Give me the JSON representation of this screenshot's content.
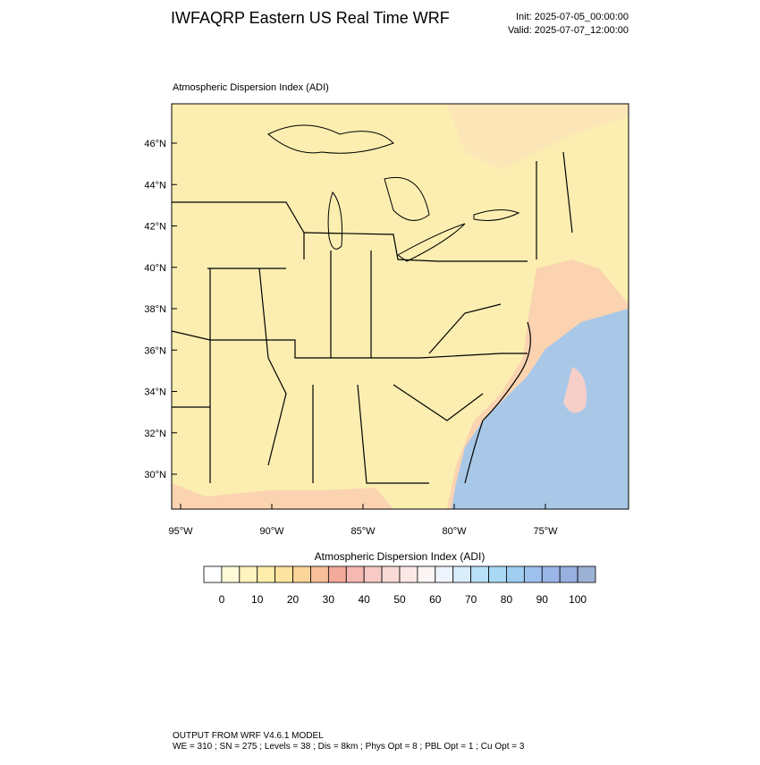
{
  "header": {
    "title": "IWFAQRP Eastern US Real Time WRF",
    "init": "Init: 2025-07-05_00:00:00",
    "valid": "Valid: 2025-07-07_12:00:00"
  },
  "map": {
    "label": "Atmospheric Dispersion Index   (ADI)",
    "lat_labels": [
      "46°N",
      "44°N",
      "42°N",
      "40°N",
      "38°N",
      "36°N",
      "34°N",
      "32°N",
      "30°N"
    ],
    "lon_labels": [
      "95°W",
      "90°W",
      "85°W",
      "80°W",
      "75°W"
    ]
  },
  "colorbar": {
    "title": "Atmospheric Dispersion Index  (ADI)",
    "ticks": [
      0,
      10,
      20,
      30,
      40,
      50,
      60,
      70,
      80,
      90,
      100
    ],
    "colors": [
      "#ffffff",
      "#fffbd8",
      "#fff4c0",
      "#fdedaa",
      "#fde3a0",
      "#fbd49a",
      "#f8c09a",
      "#f4aa9a",
      "#f5b8b2",
      "#f7cac6",
      "#f9dad6",
      "#fbe8e6",
      "#fbf4f4",
      "#eef4fc",
      "#d8ecfa",
      "#b8e0f6",
      "#a8d8f4",
      "#a0cdf0",
      "#9ec0ec",
      "#9ab6e8",
      "#98b0e0",
      "#9cb2d4"
    ]
  },
  "footer": {
    "line1": "OUTPUT FROM WRF V4.6.1 MODEL",
    "line2": "WE = 310 ; SN = 275 ; Levels = 38 ; Dis = 8km ; Phys Opt = 8 ; PBL Opt = 1 ; Cu Opt = 3"
  }
}
